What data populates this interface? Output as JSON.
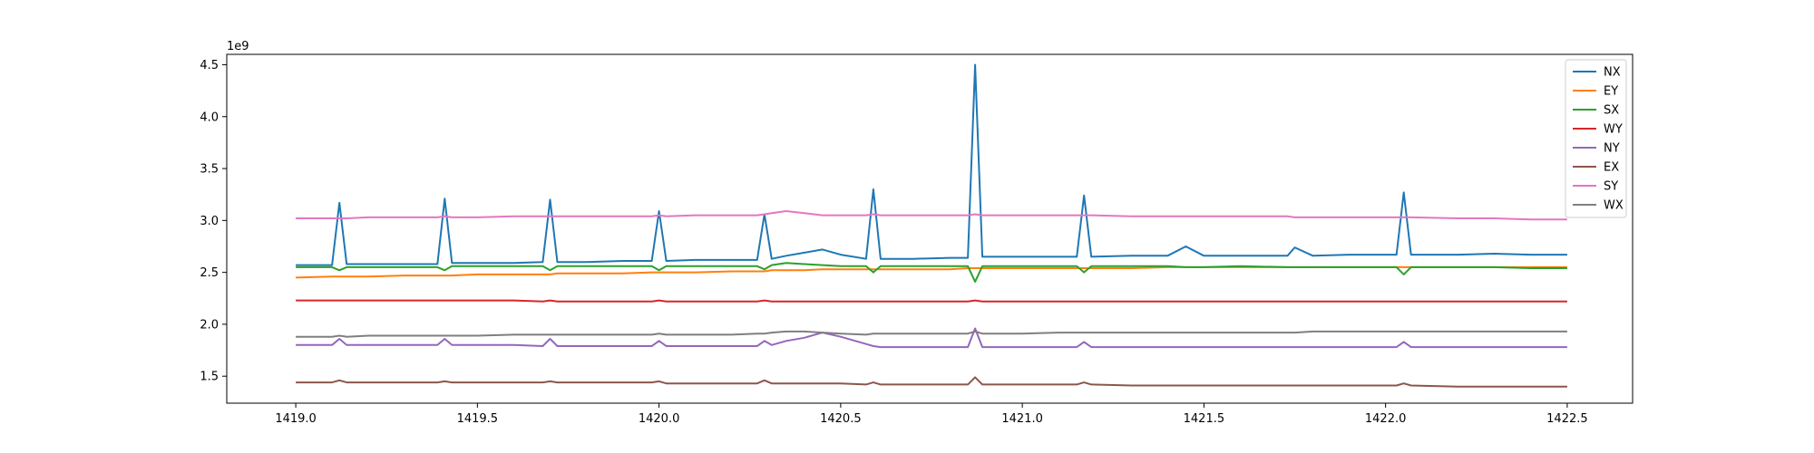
{
  "chart_data": {
    "type": "line",
    "title": "",
    "xlabel": "",
    "ylabel": "",
    "y_offset_label": "1e9",
    "xlim": [
      1418.81,
      1422.68
    ],
    "ylim": [
      1.24,
      4.6
    ],
    "x_ticks": [
      1419.0,
      1419.5,
      1420.0,
      1420.5,
      1421.0,
      1421.5,
      1422.0,
      1422.5
    ],
    "x_tick_labels": [
      "1419.0",
      "1419.5",
      "1420.0",
      "1420.5",
      "1421.0",
      "1421.5",
      "1422.0",
      "1422.5"
    ],
    "y_ticks": [
      1.5,
      2.0,
      2.5,
      3.0,
      3.5,
      4.0,
      4.5
    ],
    "y_tick_labels": [
      "1.5",
      "2.0",
      "2.5",
      "3.0",
      "3.5",
      "4.0",
      "4.5"
    ],
    "grid": false,
    "legend_position": "top-right",
    "x": [
      1419.0,
      1419.1,
      1419.12,
      1419.14,
      1419.2,
      1419.3,
      1419.39,
      1419.41,
      1419.43,
      1419.5,
      1419.6,
      1419.68,
      1419.7,
      1419.72,
      1419.8,
      1419.9,
      1419.98,
      1420.0,
      1420.02,
      1420.1,
      1420.2,
      1420.27,
      1420.29,
      1420.31,
      1420.35,
      1420.4,
      1420.45,
      1420.5,
      1420.57,
      1420.59,
      1420.61,
      1420.7,
      1420.8,
      1420.85,
      1420.87,
      1420.89,
      1420.95,
      1421.0,
      1421.1,
      1421.15,
      1421.17,
      1421.19,
      1421.3,
      1421.4,
      1421.45,
      1421.5,
      1421.6,
      1421.73,
      1421.75,
      1421.8,
      1421.9,
      1422.03,
      1422.05,
      1422.07,
      1422.2,
      1422.3,
      1422.4,
      1422.5
    ],
    "series": [
      {
        "name": "NX",
        "color": "#1f77b4",
        "values": [
          2.57,
          2.57,
          3.17,
          2.58,
          2.58,
          2.58,
          2.58,
          3.21,
          2.59,
          2.59,
          2.59,
          2.6,
          3.2,
          2.6,
          2.6,
          2.61,
          2.61,
          3.09,
          2.61,
          2.62,
          2.62,
          2.62,
          3.06,
          2.63,
          2.66,
          2.69,
          2.72,
          2.67,
          2.63,
          3.3,
          2.63,
          2.63,
          2.64,
          2.64,
          4.5,
          2.65,
          2.65,
          2.65,
          2.65,
          2.65,
          3.24,
          2.65,
          2.66,
          2.66,
          2.75,
          2.66,
          2.66,
          2.66,
          2.74,
          2.66,
          2.67,
          2.67,
          3.27,
          2.67,
          2.67,
          2.68,
          2.67,
          2.67
        ]
      },
      {
        "name": "EY",
        "color": "#ff7f0e",
        "values": [
          2.45,
          2.46,
          2.46,
          2.46,
          2.46,
          2.47,
          2.47,
          2.47,
          2.47,
          2.48,
          2.48,
          2.48,
          2.48,
          2.49,
          2.49,
          2.49,
          2.5,
          2.5,
          2.5,
          2.5,
          2.51,
          2.51,
          2.51,
          2.52,
          2.52,
          2.52,
          2.53,
          2.53,
          2.53,
          2.53,
          2.53,
          2.53,
          2.53,
          2.54,
          2.54,
          2.54,
          2.54,
          2.54,
          2.54,
          2.54,
          2.54,
          2.54,
          2.54,
          2.55,
          2.55,
          2.55,
          2.55,
          2.55,
          2.55,
          2.55,
          2.55,
          2.55,
          2.55,
          2.55,
          2.55,
          2.55,
          2.55,
          2.55
        ]
      },
      {
        "name": "SX",
        "color": "#2ca02c",
        "values": [
          2.55,
          2.55,
          2.52,
          2.55,
          2.55,
          2.55,
          2.55,
          2.52,
          2.56,
          2.56,
          2.56,
          2.56,
          2.52,
          2.56,
          2.56,
          2.56,
          2.56,
          2.52,
          2.56,
          2.56,
          2.56,
          2.56,
          2.53,
          2.57,
          2.59,
          2.58,
          2.57,
          2.56,
          2.56,
          2.5,
          2.56,
          2.56,
          2.56,
          2.56,
          2.41,
          2.56,
          2.56,
          2.56,
          2.56,
          2.56,
          2.5,
          2.56,
          2.56,
          2.56,
          2.55,
          2.55,
          2.56,
          2.55,
          2.55,
          2.55,
          2.55,
          2.55,
          2.48,
          2.55,
          2.55,
          2.55,
          2.54,
          2.54
        ]
      },
      {
        "name": "WY",
        "color": "#d62728",
        "values": [
          2.23,
          2.23,
          2.23,
          2.23,
          2.23,
          2.23,
          2.23,
          2.23,
          2.23,
          2.23,
          2.23,
          2.22,
          2.23,
          2.22,
          2.22,
          2.22,
          2.22,
          2.23,
          2.22,
          2.22,
          2.22,
          2.22,
          2.23,
          2.22,
          2.22,
          2.22,
          2.22,
          2.22,
          2.22,
          2.22,
          2.22,
          2.22,
          2.22,
          2.22,
          2.23,
          2.22,
          2.22,
          2.22,
          2.22,
          2.22,
          2.22,
          2.22,
          2.22,
          2.22,
          2.22,
          2.22,
          2.22,
          2.22,
          2.22,
          2.22,
          2.22,
          2.22,
          2.22,
          2.22,
          2.22,
          2.22,
          2.22,
          2.22
        ]
      },
      {
        "name": "NY",
        "color": "#9467bd",
        "values": [
          1.8,
          1.8,
          1.86,
          1.8,
          1.8,
          1.8,
          1.8,
          1.86,
          1.8,
          1.8,
          1.8,
          1.79,
          1.86,
          1.79,
          1.79,
          1.79,
          1.79,
          1.84,
          1.79,
          1.79,
          1.79,
          1.79,
          1.84,
          1.8,
          1.84,
          1.87,
          1.92,
          1.88,
          1.81,
          1.79,
          1.78,
          1.78,
          1.78,
          1.78,
          1.96,
          1.78,
          1.78,
          1.78,
          1.78,
          1.78,
          1.83,
          1.78,
          1.78,
          1.78,
          1.78,
          1.78,
          1.78,
          1.78,
          1.78,
          1.78,
          1.78,
          1.78,
          1.83,
          1.78,
          1.78,
          1.78,
          1.78,
          1.78
        ]
      },
      {
        "name": "EX",
        "color": "#8c564b",
        "values": [
          1.44,
          1.44,
          1.46,
          1.44,
          1.44,
          1.44,
          1.44,
          1.45,
          1.44,
          1.44,
          1.44,
          1.44,
          1.45,
          1.44,
          1.44,
          1.44,
          1.44,
          1.45,
          1.43,
          1.43,
          1.43,
          1.43,
          1.46,
          1.43,
          1.43,
          1.43,
          1.43,
          1.43,
          1.42,
          1.44,
          1.42,
          1.42,
          1.42,
          1.42,
          1.49,
          1.42,
          1.42,
          1.42,
          1.42,
          1.42,
          1.44,
          1.42,
          1.41,
          1.41,
          1.41,
          1.41,
          1.41,
          1.41,
          1.41,
          1.41,
          1.41,
          1.41,
          1.43,
          1.41,
          1.4,
          1.4,
          1.4,
          1.4
        ]
      },
      {
        "name": "SY",
        "color": "#e377c2",
        "values": [
          3.02,
          3.02,
          3.02,
          3.02,
          3.03,
          3.03,
          3.03,
          3.04,
          3.03,
          3.03,
          3.04,
          3.04,
          3.04,
          3.04,
          3.04,
          3.04,
          3.04,
          3.05,
          3.04,
          3.05,
          3.05,
          3.05,
          3.06,
          3.07,
          3.09,
          3.07,
          3.05,
          3.05,
          3.05,
          3.06,
          3.05,
          3.05,
          3.05,
          3.05,
          3.06,
          3.05,
          3.05,
          3.05,
          3.05,
          3.05,
          3.05,
          3.05,
          3.04,
          3.04,
          3.04,
          3.04,
          3.04,
          3.04,
          3.03,
          3.03,
          3.03,
          3.03,
          3.03,
          3.03,
          3.02,
          3.02,
          3.01,
          3.01
        ]
      },
      {
        "name": "WX",
        "color": "#7f7f7f",
        "values": [
          1.88,
          1.88,
          1.89,
          1.88,
          1.89,
          1.89,
          1.89,
          1.89,
          1.89,
          1.89,
          1.9,
          1.9,
          1.9,
          1.9,
          1.9,
          1.9,
          1.9,
          1.91,
          1.9,
          1.9,
          1.9,
          1.91,
          1.91,
          1.92,
          1.93,
          1.93,
          1.92,
          1.91,
          1.9,
          1.91,
          1.91,
          1.91,
          1.91,
          1.91,
          1.93,
          1.91,
          1.91,
          1.91,
          1.92,
          1.92,
          1.92,
          1.92,
          1.92,
          1.92,
          1.92,
          1.92,
          1.92,
          1.92,
          1.92,
          1.93,
          1.93,
          1.93,
          1.93,
          1.93,
          1.93,
          1.93,
          1.93,
          1.93
        ]
      }
    ]
  }
}
